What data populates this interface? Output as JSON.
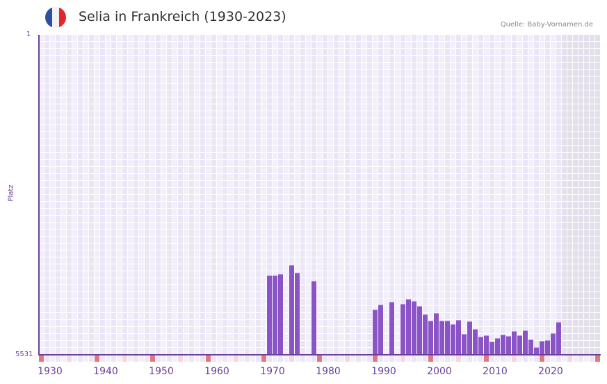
{
  "header": {
    "title": "Selia in Frankreich (1930-2023)",
    "source": "Quelle: Baby-Vornamen.de",
    "flag_colors": [
      "#2c4fa3",
      "#f2f2f2",
      "#e3262d"
    ]
  },
  "colors": {
    "bar": "#8a54c7",
    "axis": "#6a3f9a",
    "grid_a": "#f2effb",
    "grid_b": "#ebe6f6",
    "future_shade": "#e3dfeb",
    "marker_decade": "#e57680",
    "marker_half": "#f5d7df"
  },
  "chart_data": {
    "type": "bar",
    "title": "Selia in Frankreich (1930-2023)",
    "xlabel": "",
    "ylabel": "Platz",
    "y_axis_inverted": true,
    "ylim": [
      5531,
      1
    ],
    "y_tick_labels": [
      "1",
      "5531"
    ],
    "x_tick_labels": [
      "1930",
      "1940",
      "1950",
      "1960",
      "1970",
      "1980",
      "1990",
      "2000",
      "2010",
      "2020"
    ],
    "x_range": [
      1930,
      2028
    ],
    "grid": true,
    "series": [
      {
        "name": "Platz",
        "x": [
          1971,
          1972,
          1973,
          1975,
          1976,
          1979,
          1990,
          1991,
          1993,
          1995,
          1996,
          1997,
          1998,
          1999,
          2000,
          2001,
          2002,
          2003,
          2004,
          2005,
          2006,
          2007,
          2008,
          2009,
          2010,
          2011,
          2012,
          2013,
          2014,
          2015,
          2016,
          2017,
          2018,
          2019,
          2020,
          2021,
          2022,
          2023
        ],
        "values": [
          4165,
          4165,
          4141,
          3985,
          4117,
          4261,
          4754,
          4670,
          4622,
          4658,
          4574,
          4610,
          4694,
          4838,
          4947,
          4815,
          4947,
          4947,
          5007,
          4935,
          5176,
          4959,
          5092,
          5224,
          5200,
          5308,
          5248,
          5188,
          5212,
          5128,
          5200,
          5116,
          5272,
          5405,
          5296,
          5284,
          5164,
          4971
        ]
      }
    ]
  },
  "axis": {
    "y_title": "Platz",
    "y_top": "1",
    "y_bottom": "5531"
  }
}
